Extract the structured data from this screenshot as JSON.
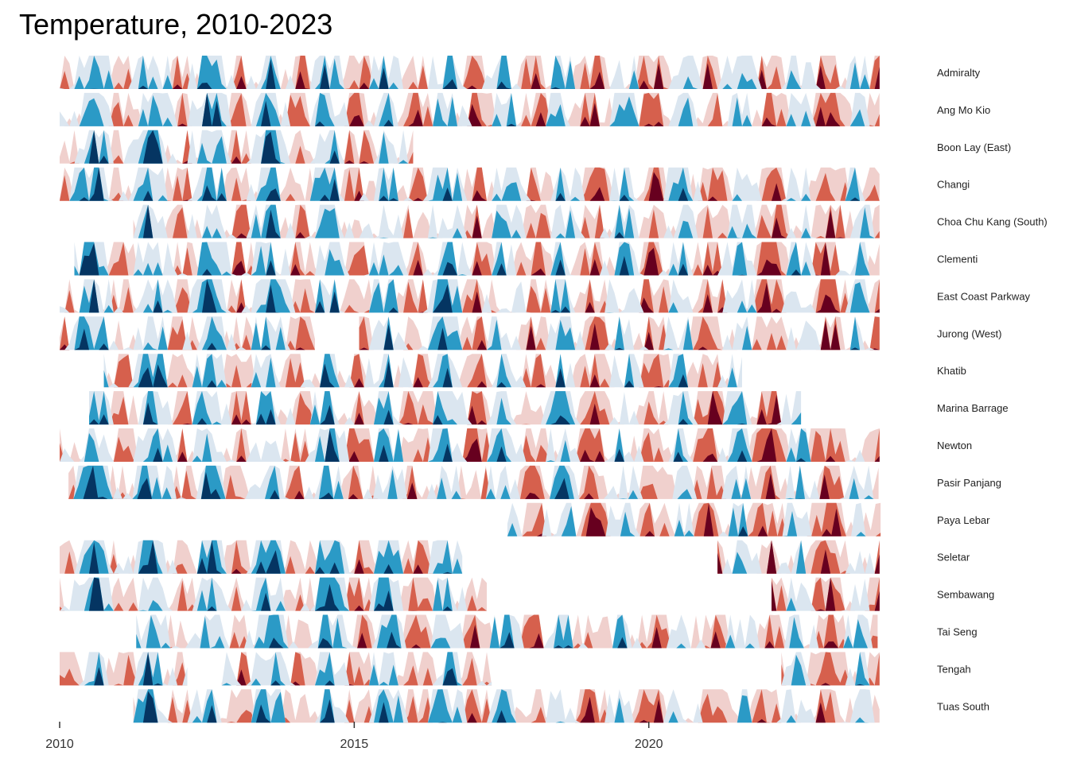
{
  "chart_data": {
    "type": "area",
    "title": "Temperature, 2010-2023",
    "subtitle": "",
    "xlabel": "",
    "ylabel": "",
    "x_ticks": [
      2010,
      2015,
      2020
    ],
    "xlim": [
      2010,
      2024
    ],
    "encoding": "horizon",
    "band_colors": {
      "pos1": "#f0d0cd",
      "pos2": "#d6604d",
      "pos3": "#67001f",
      "neg1": "#dbe6f0",
      "neg2": "#2b9ac6",
      "neg3": "#053562"
    },
    "series": [
      {
        "name": "Admiralty",
        "start": 2010.0,
        "end": 2023.95,
        "gaps": []
      },
      {
        "name": "Ang Mo Kio",
        "start": 2010.0,
        "end": 2023.95,
        "gaps": []
      },
      {
        "name": "Boon Lay (East)",
        "start": 2010.0,
        "end": 2016.0,
        "gaps": []
      },
      {
        "name": "Changi",
        "start": 2010.0,
        "end": 2023.95,
        "gaps": []
      },
      {
        "name": "Choa Chu Kang (South)",
        "start": 2011.25,
        "end": 2023.95,
        "gaps": []
      },
      {
        "name": "Clementi",
        "start": 2010.25,
        "end": 2023.95,
        "gaps": []
      },
      {
        "name": "East Coast Parkway",
        "start": 2010.0,
        "end": 2023.95,
        "gaps": []
      },
      {
        "name": "Jurong (West)",
        "start": 2010.0,
        "end": 2023.95,
        "gaps": [
          [
            2014.4,
            2015.0
          ]
        ]
      },
      {
        "name": "Khatib",
        "start": 2010.75,
        "end": 2021.6,
        "gaps": []
      },
      {
        "name": "Marina Barrage",
        "start": 2010.5,
        "end": 2022.6,
        "gaps": []
      },
      {
        "name": "Newton",
        "start": 2010.0,
        "end": 2023.95,
        "gaps": []
      },
      {
        "name": "Pasir Panjang",
        "start": 2010.15,
        "end": 2023.95,
        "gaps": []
      },
      {
        "name": "Paya Lebar",
        "start": 2017.6,
        "end": 2023.95,
        "gaps": []
      },
      {
        "name": "Seletar",
        "start": 2010.0,
        "end": 2023.95,
        "gaps": [
          [
            2016.9,
            2021.1
          ]
        ]
      },
      {
        "name": "Sembawang",
        "start": 2010.0,
        "end": 2023.95,
        "gaps": [
          [
            2017.3,
            2022.0
          ]
        ]
      },
      {
        "name": "Tai Seng",
        "start": 2011.3,
        "end": 2023.95,
        "gaps": []
      },
      {
        "name": "Tengah",
        "start": 2010.0,
        "end": 2023.95,
        "gaps": [
          [
            2012.2,
            2012.7
          ],
          [
            2017.4,
            2022.2
          ]
        ]
      },
      {
        "name": "Tuas South",
        "start": 2011.25,
        "end": 2023.95,
        "gaps": []
      }
    ]
  }
}
